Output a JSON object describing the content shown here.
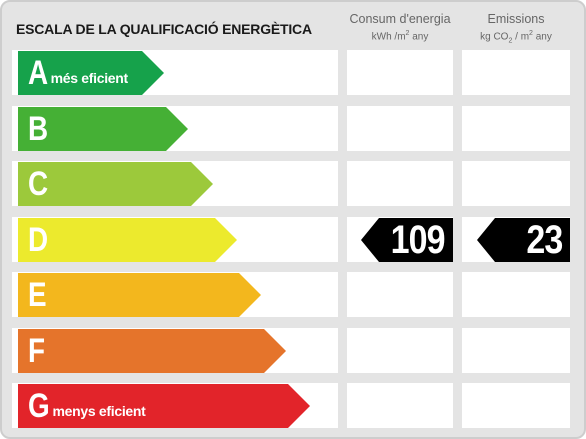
{
  "header": {
    "title": "ESCALA DE LA QUALIFICACIÓ ENERGÈTICA",
    "consum": {
      "label": "Consum d'energia",
      "unit_pre": "kWh /m",
      "unit_sup": "2",
      "unit_post": " any"
    },
    "emissions": {
      "label": "Emissions",
      "unit_pre": "kg CO",
      "unit_sub": "2",
      "unit_mid": " / m",
      "unit_sup": "2",
      "unit_post": " any"
    }
  },
  "ratings": [
    {
      "letter": "A",
      "desc": "més eficient",
      "color": "#16a24b"
    },
    {
      "letter": "B",
      "desc": "",
      "color": "#45b035"
    },
    {
      "letter": "C",
      "desc": "",
      "color": "#9cc93b"
    },
    {
      "letter": "D",
      "desc": "",
      "color": "#ecea2d"
    },
    {
      "letter": "E",
      "desc": "",
      "color": "#f3b71d"
    },
    {
      "letter": "F",
      "desc": "",
      "color": "#e5742b"
    },
    {
      "letter": "G",
      "desc": "menys eficient",
      "color": "#e2242a"
    }
  ],
  "current": {
    "rating_letter": "D",
    "consum_value": "109",
    "emissions_value": "23"
  }
}
